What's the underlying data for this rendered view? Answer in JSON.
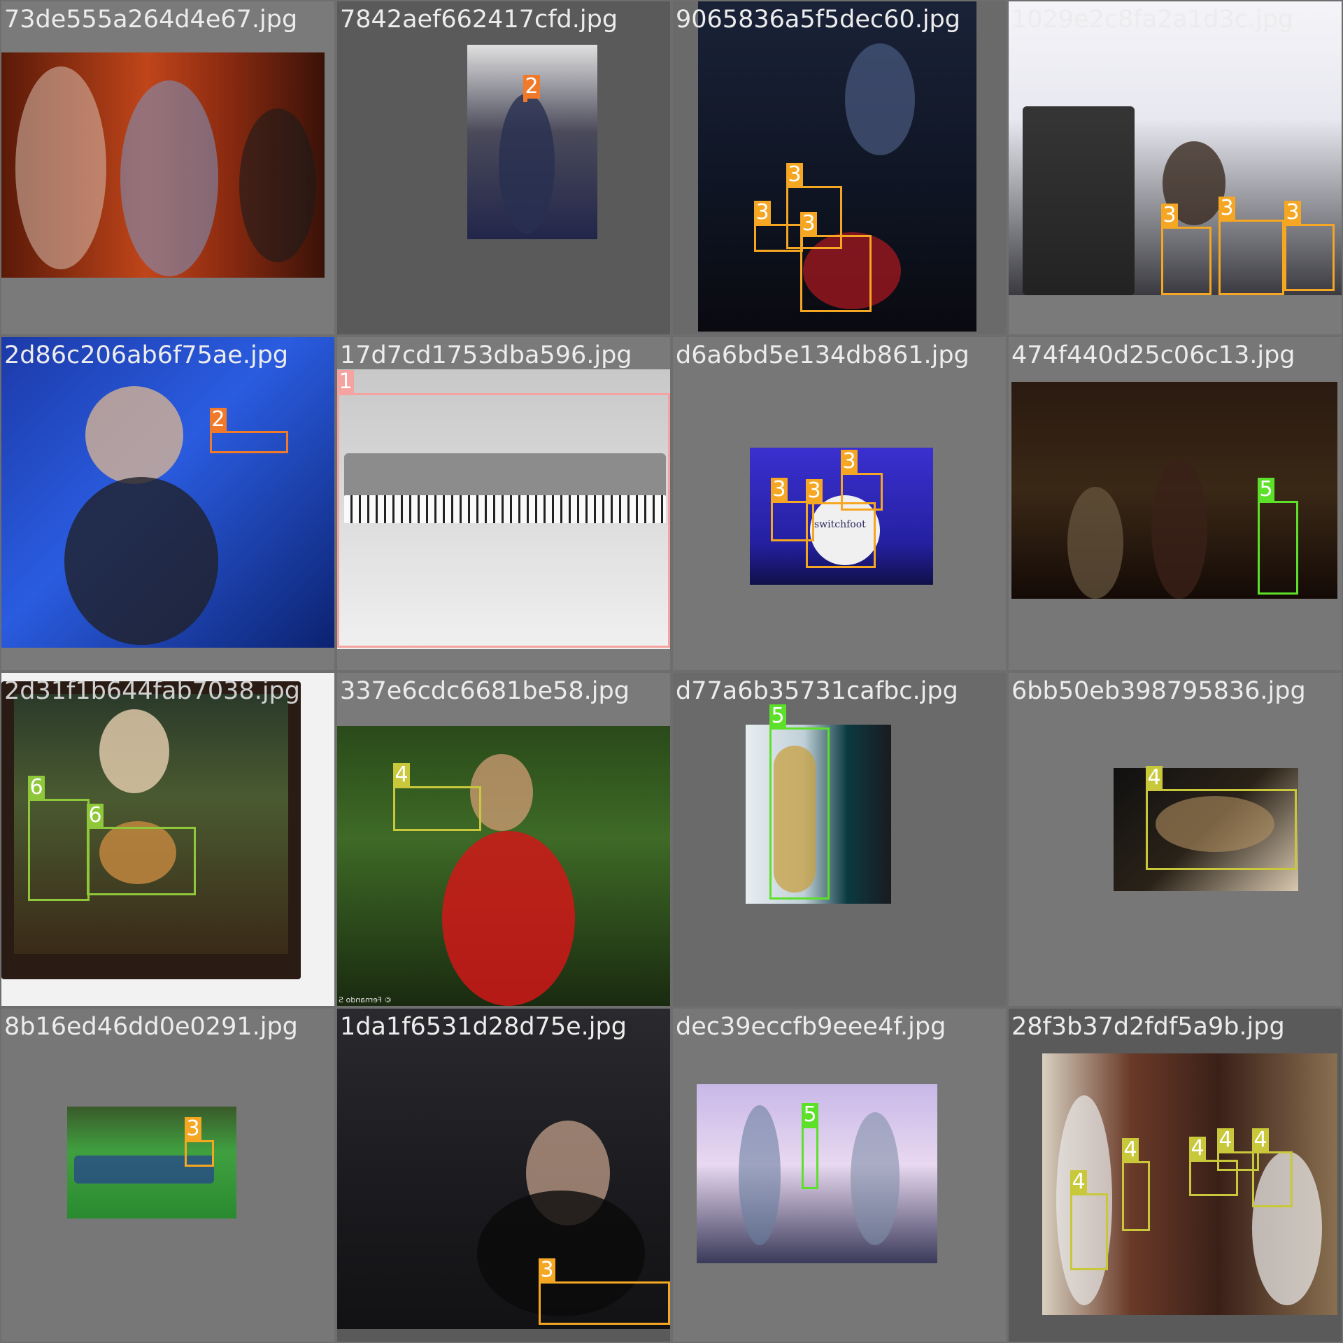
{
  "tiles": [
    {
      "filename": "73de555a264d4e67.jpg",
      "labels": []
    },
    {
      "filename": "7842aef662417cfd.jpg",
      "labels": [
        "2"
      ]
    },
    {
      "filename": "9065836a5f5dec60.jpg",
      "labels": [
        "3",
        "3",
        "3"
      ]
    },
    {
      "filename": "1029e2c8fa2a1d3c.jpg",
      "labels": [
        "3",
        "3",
        "3"
      ]
    },
    {
      "filename": "2d86c206ab6f75ae.jpg",
      "labels": [
        "2"
      ]
    },
    {
      "filename": "17d7cd1753dba596.jpg",
      "labels": [
        "1"
      ]
    },
    {
      "filename": "d6a6bd5e134db861.jpg",
      "labels": [
        "3",
        "3",
        "3"
      ],
      "drum_text": "switchfoot"
    },
    {
      "filename": "474f440d25c06c13.jpg",
      "labels": [
        "5"
      ]
    },
    {
      "filename": "2d31f1b644fab7038.jpg",
      "labels": [
        "6",
        "6"
      ]
    },
    {
      "filename": "337e6cdc6681be58.jpg",
      "labels": [
        "4"
      ],
      "watermark": "© Fernando S"
    },
    {
      "filename": "d77a6b35731cafbc.jpg",
      "labels": [
        "5"
      ]
    },
    {
      "filename": "6bb50eb398795836.jpg",
      "labels": [
        "4"
      ]
    },
    {
      "filename": "8b16ed46dd0e0291.jpg",
      "labels": [
        "3"
      ]
    },
    {
      "filename": "1da1f6531d28d75e.jpg",
      "labels": [
        "3"
      ]
    },
    {
      "filename": "dec39eccfb9eee4f.jpg",
      "labels": [
        "5"
      ]
    },
    {
      "filename": "28f3b37d2fdf5a9b.jpg",
      "labels": [
        "4",
        "4",
        "4",
        "4",
        "4"
      ]
    }
  ],
  "class_colors": {
    "1": "#f4a3a0",
    "2": "#f07a2a",
    "3": "#f5a623",
    "4": "#c8c83a",
    "5": "#5de02a",
    "6": "#8ec73a"
  }
}
